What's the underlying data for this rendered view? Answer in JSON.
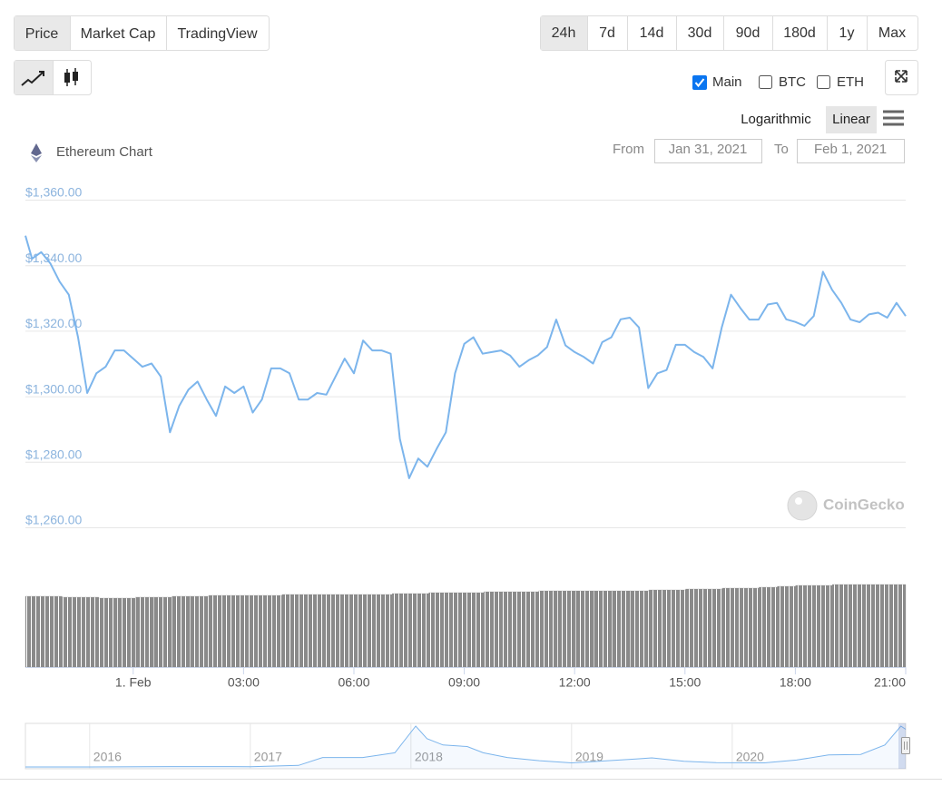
{
  "tabs": {
    "items": [
      "Price",
      "Market Cap",
      "TradingView"
    ],
    "active": 0
  },
  "ranges": {
    "items": [
      "24h",
      "7d",
      "14d",
      "30d",
      "90d",
      "180d",
      "1y",
      "Max"
    ],
    "active": 0
  },
  "toggles": [
    {
      "label": "Main",
      "checked": true
    },
    {
      "label": "BTC",
      "checked": false
    },
    {
      "label": "ETH",
      "checked": false
    }
  ],
  "scale_buttons": {
    "items": [
      "Logarithmic",
      "Linear"
    ],
    "active": 1
  },
  "chart_title": "Ethereum Chart",
  "date_range": {
    "from_label": "From",
    "from": "Jan 31, 2021",
    "to_label": "To",
    "to": "Feb 1, 2021"
  },
  "watermark": "CoinGecko",
  "chart_data": {
    "type": "line",
    "color": "#7cb5ec",
    "grid": true,
    "x": [
      -2.93,
      -2.75,
      -2.5,
      -2.25,
      -2,
      -1.75,
      -1.5,
      -1.25,
      -1,
      -0.75,
      -0.5,
      -0.25,
      0,
      0.25,
      0.5,
      0.75,
      1,
      1.25,
      1.5,
      1.75,
      2,
      2.25,
      2.5,
      2.75,
      3,
      3.25,
      3.5,
      3.75,
      4,
      4.25,
      4.5,
      4.75,
      5,
      5.25,
      5.5,
      5.75,
      6,
      6.25,
      6.5,
      6.75,
      7,
      7.25,
      7.5,
      7.75,
      8,
      8.25,
      8.5,
      8.75,
      9,
      9.25,
      9.5,
      9.75,
      10,
      10.25,
      10.5,
      10.75,
      11,
      11.25,
      11.5,
      11.75,
      12,
      12.25,
      12.5,
      12.75,
      13,
      13.25,
      13.5,
      13.75,
      14,
      14.25,
      14.5,
      14.75,
      15,
      15.25,
      15.5,
      15.75,
      16,
      16.25,
      16.5,
      16.75,
      17,
      17.25,
      17.5,
      17.75,
      18,
      18.25,
      18.5,
      18.75,
      19,
      19.25,
      19.5,
      19.75,
      20,
      20.25,
      20.5,
      20.75,
      21
    ],
    "values": [
      1349,
      1342,
      1344,
      1340.5,
      1335,
      1331,
      1318,
      1301,
      1307,
      1309,
      1314,
      1314,
      1311.5,
      1309,
      1310,
      1306,
      1289,
      1297,
      1302,
      1304.5,
      1299,
      1294,
      1303,
      1301,
      1303,
      1295,
      1299,
      1308.5,
      1308.5,
      1307,
      1299,
      1299,
      1301,
      1300.5,
      1306,
      1311.5,
      1307,
      1317,
      1314,
      1314,
      1313,
      1287,
      1275,
      1281,
      1278.5,
      1284,
      1289,
      1307,
      1316,
      1318,
      1313,
      1313.5,
      1314,
      1312.4,
      1309,
      1311,
      1312.5,
      1315,
      1323.4,
      1315.5,
      1313.5,
      1312,
      1310,
      1316.5,
      1318,
      1323.5,
      1324,
      1321,
      1302.5,
      1307,
      1308,
      1315.7,
      1315.7,
      1313.5,
      1312,
      1308.5,
      1321,
      1331,
      1327,
      1323.4,
      1323.4,
      1328,
      1328.5,
      1323.5,
      1322.7,
      1321.5,
      1324.5,
      1338,
      1332.5,
      1328.5,
      1323.4,
      1322.6,
      1325,
      1325.5,
      1324,
      1328.5,
      1324.5
    ],
    "xlim": [
      -2.93,
      21
    ],
    "xticks": [
      {
        "value": 0,
        "label": "1. Feb"
      },
      {
        "value": 3,
        "label": "03:00"
      },
      {
        "value": 6,
        "label": "06:00"
      },
      {
        "value": 9,
        "label": "09:00"
      },
      {
        "value": 12,
        "label": "12:00"
      },
      {
        "value": 15,
        "label": "15:00"
      },
      {
        "value": 18,
        "label": "18:00"
      },
      {
        "value": 21,
        "label": "21:00"
      }
    ],
    "ylim": [
      1260,
      1360
    ],
    "yticks": [
      {
        "value": 1360,
        "label": "$1,360.00"
      },
      {
        "value": 1340,
        "label": "$1,340.00"
      },
      {
        "value": 1320,
        "label": "$1,320.00"
      },
      {
        "value": 1300,
        "label": "$1,300.00"
      },
      {
        "value": 1280,
        "label": "$1,280.00"
      },
      {
        "value": 1260,
        "label": "$1,260.00"
      }
    ]
  },
  "volume": {
    "color": "#8a8a8a",
    "values": [
      78,
      78,
      77,
      77,
      76,
      76,
      77,
      77,
      78,
      78,
      79,
      79,
      79,
      79,
      80,
      80,
      80,
      80,
      80,
      80,
      81,
      81,
      82,
      82,
      82,
      83,
      83,
      83,
      84,
      84,
      84,
      84,
      84,
      84,
      85,
      85,
      86,
      86,
      87,
      87,
      88,
      89,
      90,
      90,
      91,
      91,
      91,
      91
    ]
  },
  "navigator": {
    "color": "#7cb5ec",
    "x": [
      2015.6,
      2016,
      2016.5,
      2017,
      2017.3,
      2017.45,
      2017.7,
      2017.9,
      2018.03,
      2018.1,
      2018.2,
      2018.35,
      2018.45,
      2018.6,
      2018.8,
      2019,
      2019.4,
      2019.5,
      2019.7,
      2019.9,
      2020.2,
      2020.4,
      2020.6,
      2020.8,
      2020.95,
      2021.05,
      2021.08
    ],
    "values": [
      1,
      1,
      12,
      10,
      50,
      300,
      300,
      450,
      1300,
      900,
      700,
      650,
      450,
      300,
      200,
      130,
      250,
      290,
      180,
      140,
      130,
      220,
      380,
      400,
      700,
      1300,
      1200
    ],
    "xlim": [
      2015.6,
      2021.08
    ],
    "xticks": [
      2016,
      2017,
      2018,
      2019,
      2020
    ]
  }
}
